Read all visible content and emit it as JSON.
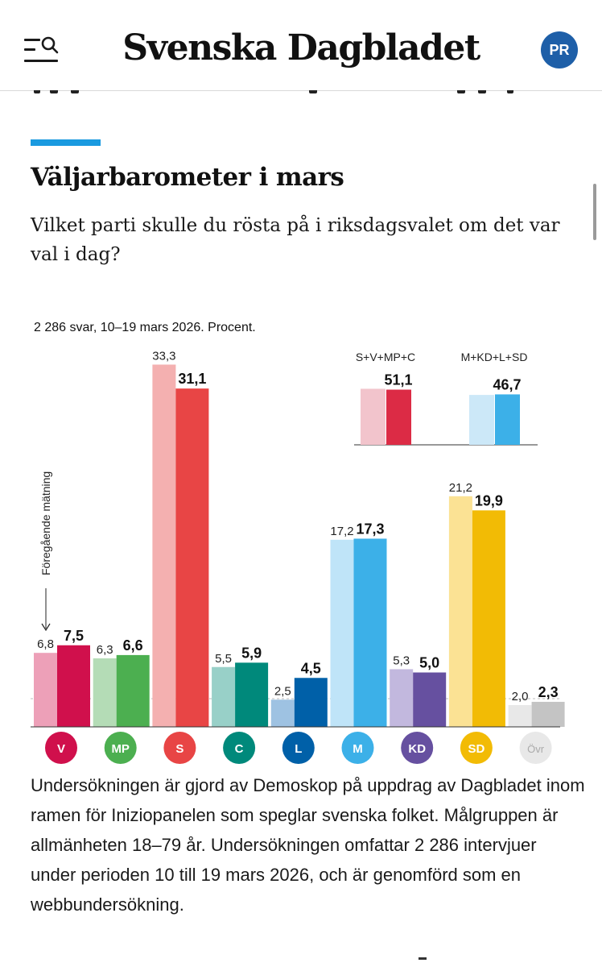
{
  "header": {
    "logo": "Svenska Dagbladet",
    "avatar_initials": "PR",
    "brand_color": "#1e5fa8"
  },
  "article": {
    "accent_color": "#1a9ae0",
    "title": "Väljarbarometer i mars",
    "subtitle": "Vilket parti skulle du rösta på i riksdagsvalet om det var val i dag?",
    "description": "Undersökningen är gjord av Demoskop på uppdrag av Dagbladet inom ramen för Iniziopanelen som speglar svenska folket. Målgruppen är allmänheten 18–79 år. Undersökningen omfattar 2 286 intervjuer under perioden 10 till 19 mars 2026, och är genomförd som en webbundersökning."
  },
  "chart_data": {
    "type": "bar",
    "note": "2 286 svar, 10–19 mars 2026. Procent.",
    "previous_label": "Föregående mätning",
    "ylim": [
      0,
      35
    ],
    "categories": [
      "V",
      "MP",
      "S",
      "C",
      "L",
      "M",
      "KD",
      "SD",
      "Övr"
    ],
    "series": [
      {
        "values": [
          6.8,
          6.3,
          33.3,
          5.5,
          2.5,
          17.2,
          5.3,
          21.2,
          2.0
        ]
      },
      {
        "values": [
          7.5,
          6.6,
          31.1,
          5.9,
          4.5,
          17.3,
          5.0,
          19.9,
          2.3
        ]
      }
    ],
    "value_labels_previous": [
      "6,8",
      "6,3",
      "33,3",
      "5,5",
      "2,5",
      "17,2",
      "5,3",
      "21,2",
      "2,0"
    ],
    "value_labels_current": [
      "7,5",
      "6,6",
      "31,1",
      "5,9",
      "4,5",
      "17,3",
      "5,0",
      "19,9",
      "2,3"
    ],
    "colors_current": [
      "#d0104c",
      "#4caf50",
      "#e84545",
      "#00897b",
      "#0060a8",
      "#3cb0e8",
      "#6650a0",
      "#f2bb05",
      "#c4c4c4"
    ],
    "colors_previous": [
      "#eda0b8",
      "#b4dcb6",
      "#f4b0b0",
      "#98d0c8",
      "#9ec2e2",
      "#bfe4f8",
      "#c2b8de",
      "#fbe294",
      "#e8e8e8"
    ],
    "bloc_inset": [
      {
        "label": "S+V+MP+C",
        "previous": 51.9,
        "current": 51.1,
        "value_label": "51,1",
        "color": "#dc2b45",
        "color_previous": "#f2c4cc"
      },
      {
        "label": "M+KD+L+SD",
        "previous": 46.2,
        "current": 46.7,
        "value_label": "46,7",
        "color": "#3cb0e8",
        "color_previous": "#cce8f8"
      }
    ]
  }
}
